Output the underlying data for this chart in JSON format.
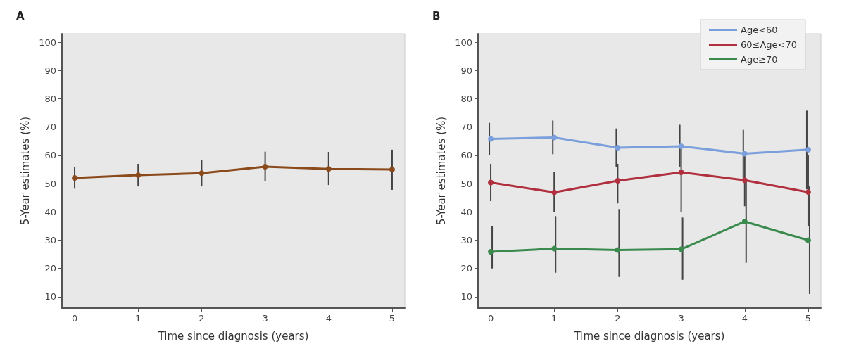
{
  "chart_data": [
    {
      "type": "line",
      "title": "A",
      "xlabel": "Time since diagnosis (years)",
      "ylabel": "5-Year estimates (%)",
      "x": [
        0,
        1,
        2,
        3,
        4,
        5
      ],
      "xlim": [
        -0.2,
        5.2
      ],
      "xticks": [
        0,
        1,
        2,
        3,
        4,
        5
      ],
      "ylim": [
        6,
        103
      ],
      "yticks": [
        10,
        20,
        30,
        40,
        50,
        60,
        70,
        80,
        90,
        100
      ],
      "grid": false,
      "legend": false,
      "marker": "circle",
      "line_style": "solid",
      "series": [
        {
          "color": "#8b4a1c",
          "values": [
            52,
            53,
            53.7,
            56,
            55.2,
            55
          ],
          "errors": [
            [
              48.2,
              55.8
            ],
            [
              49,
              57
            ],
            [
              49,
              58.3
            ],
            [
              50.8,
              61.3
            ],
            [
              49.5,
              61.2
            ],
            [
              47.8,
              62
            ]
          ]
        }
      ]
    },
    {
      "type": "line",
      "title": "B",
      "xlabel": "Time since diagnosis (years)",
      "ylabel": "5-Year estimates (%)",
      "x": [
        0,
        1,
        2,
        3,
        4,
        5
      ],
      "xlim": [
        -0.2,
        5.2
      ],
      "xticks": [
        0,
        1,
        2,
        3,
        4,
        5
      ],
      "ylim": [
        6,
        103
      ],
      "yticks": [
        10,
        20,
        30,
        40,
        50,
        60,
        70,
        80,
        90,
        100
      ],
      "grid": false,
      "legend": "top right",
      "marker": "circle",
      "line_style": "solid",
      "series": [
        {
          "name": "Age<60",
          "color": "#7b9fdc",
          "values": [
            65.8,
            66.3,
            62.7,
            63.2,
            60.6,
            62
          ],
          "errors": [
            [
              60,
              71.5
            ],
            [
              60.4,
              72.3
            ],
            [
              56,
              69.5
            ],
            [
              56,
              70.8
            ],
            [
              52,
              69
            ],
            [
              48,
              75.8
            ]
          ]
        },
        {
          "name": "60≤Age<70",
          "color": "#b0303f",
          "values": [
            50.4,
            46.9,
            51,
            54,
            51.2,
            47
          ],
          "errors": [
            [
              43.8,
              57
            ],
            [
              40,
              54
            ],
            [
              43,
              57
            ],
            [
              40,
              64
            ],
            [
              42,
              60
            ],
            [
              35,
              60
            ]
          ]
        },
        {
          "name": "Age≥70",
          "color": "#3a8a4e",
          "values": [
            25.9,
            27,
            26.5,
            26.8,
            36.6,
            30
          ],
          "errors": [
            [
              20,
              35
            ],
            [
              18.5,
              38.5
            ],
            [
              17,
              41
            ],
            [
              16,
              38
            ],
            [
              22,
              51
            ],
            [
              11,
              49
            ]
          ]
        }
      ]
    }
  ]
}
